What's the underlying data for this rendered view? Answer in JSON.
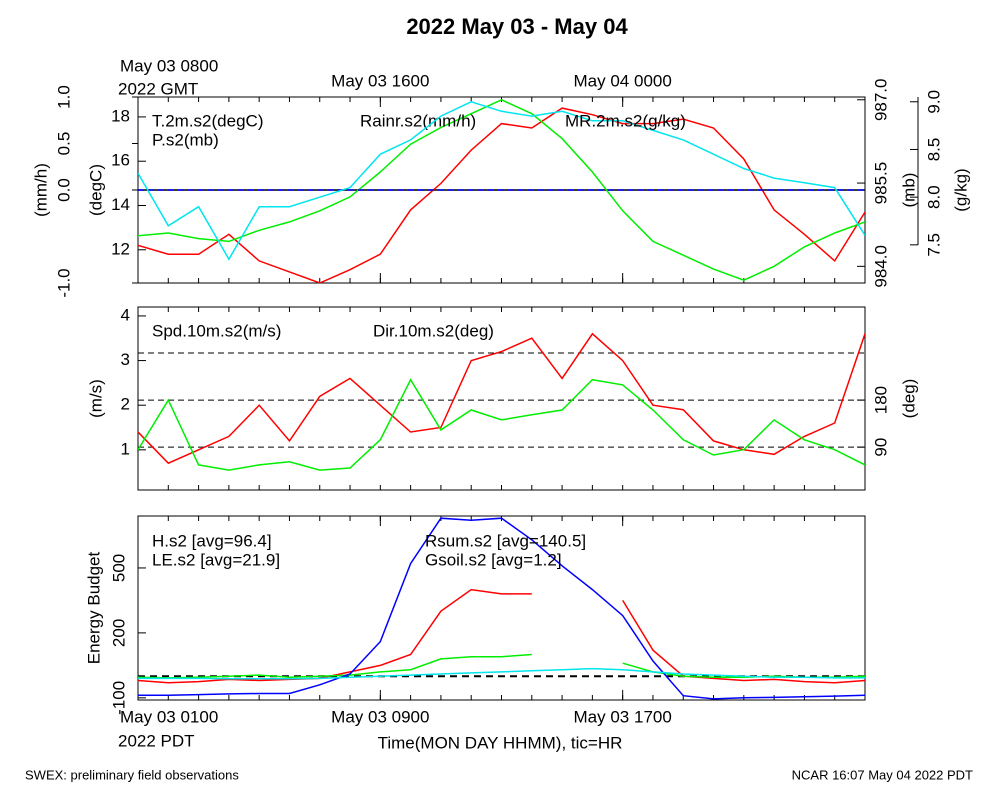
{
  "title": "2022 May 03 - May 04",
  "footer_left": "SWEX: preliminary field observations",
  "footer_right": "NCAR 16:07 May 04 2022 PDT",
  "chart_data": [
    {
      "type": "line",
      "x": [
        0,
        1,
        2,
        3,
        4,
        5,
        6,
        7,
        8,
        9,
        10,
        11,
        12,
        13,
        14,
        15,
        16,
        17,
        18,
        19,
        20,
        21,
        22,
        23,
        24
      ],
      "xlim": [
        0,
        24
      ],
      "xminor": 1,
      "xtick_side": "top",
      "xticks": [
        {
          "value": 0,
          "label": "May 03 0800"
        },
        {
          "value": 8,
          "label": "May 03 1600"
        },
        {
          "value": 16,
          "label": "May 04 0000"
        }
      ],
      "xtick_note": "2022 GMT",
      "axes": [
        {
          "label": "(mm/h)",
          "side": "left",
          "lim": [
            -1,
            1
          ],
          "ticks": [
            {
              "value": -1,
              "label": "-1.0"
            },
            {
              "value": 0,
              "label": "0.0"
            },
            0.5,
            {
              "value": 1,
              "label": "1.0"
            }
          ]
        },
        {
          "label": "(degC)",
          "side": "left",
          "lim": [
            10.5,
            18.9
          ],
          "ticks": [
            12,
            14,
            16,
            18
          ]
        },
        {
          "label": "(mb)",
          "side": "right",
          "lim": [
            983.7,
            987.05
          ],
          "ticks": [
            {
              "value": 984,
              "label": "984.0"
            },
            985.5,
            {
              "value": 987,
              "label": "987.0"
            }
          ]
        },
        {
          "label": "(g/kg)",
          "side": "right",
          "lim": [
            7.1,
            9.05
          ],
          "ticks": [
            7.5,
            {
              "value": 8,
              "label": "8.0"
            },
            8.5,
            {
              "value": 9,
              "label": "9.0"
            }
          ]
        }
      ],
      "reference_lines": [
        {
          "axis": 0,
          "value": 0,
          "style": "solid"
        }
      ],
      "series": [
        {
          "name": "T.2m.s2(degC)",
          "color": "#ff0000",
          "axis": 1,
          "values": [
            12.2,
            11.8,
            11.8,
            12.7,
            11.5,
            11.0,
            10.5,
            11.1,
            11.8,
            13.8,
            15.0,
            16.5,
            17.7,
            17.5,
            18.4,
            18.1,
            17.7,
            17.7,
            17.9,
            17.5,
            16.1,
            13.8,
            12.7,
            11.5,
            13.7
          ]
        },
        {
          "name": "P.s2(mb)",
          "color": "#00ee00",
          "axis": 2,
          "values": [
            984.55,
            984.6,
            984.5,
            984.45,
            984.65,
            984.8,
            985.0,
            985.25,
            985.7,
            986.2,
            986.5,
            986.75,
            987.0,
            986.75,
            986.3,
            985.7,
            985.0,
            984.45,
            984.2,
            983.95,
            983.75,
            984.0,
            984.35,
            984.6,
            984.8
          ]
        },
        {
          "name": "Rainr.s2(mm/h)",
          "color": "#0000ff",
          "axis": 0,
          "style": "dashed",
          "values": [
            0,
            0,
            0,
            0,
            0,
            0,
            0,
            0,
            0,
            0,
            0,
            0,
            0,
            0,
            0,
            0,
            0,
            0,
            0,
            0,
            0,
            0,
            0,
            0,
            0
          ]
        },
        {
          "name": "MR.2m.s2(g/kg)",
          "color": "#00e5ee",
          "axis": 3,
          "values": [
            8.25,
            7.7,
            7.9,
            7.35,
            7.9,
            7.9,
            8.0,
            8.1,
            8.45,
            8.6,
            8.85,
            9.0,
            8.9,
            8.85,
            8.9,
            8.8,
            8.8,
            8.7,
            8.6,
            8.45,
            8.3,
            8.2,
            8.15,
            8.1,
            7.6
          ]
        }
      ]
    },
    {
      "type": "line",
      "x": [
        0,
        1,
        2,
        3,
        4,
        5,
        6,
        7,
        8,
        9,
        10,
        11,
        12,
        13,
        14,
        15,
        16,
        17,
        18,
        19,
        20,
        21,
        22,
        23,
        24
      ],
      "xlim": [
        0,
        24
      ],
      "xminor": 1,
      "axes": [
        {
          "label": "(m/s)",
          "side": "left",
          "lim": [
            0.1,
            4.2
          ],
          "ticks": [
            1,
            2,
            3,
            4
          ]
        },
        {
          "label": "(deg)",
          "side": "right",
          "lim": [
            8,
            358
          ],
          "ticks": [
            90,
            180
          ]
        }
      ],
      "gridlines": {
        "axis": 1,
        "values": [
          90,
          180,
          270
        ],
        "style": "dashed"
      },
      "series": [
        {
          "name": "Spd.10m.s2(m/s)",
          "color": "#ff0000",
          "axis": 0,
          "values": [
            1.4,
            0.7,
            1.0,
            1.3,
            2.0,
            1.2,
            2.2,
            2.6,
            2.0,
            1.4,
            1.5,
            3.0,
            3.2,
            3.5,
            2.6,
            3.6,
            3.0,
            2.0,
            1.9,
            1.2,
            1.0,
            0.9,
            1.3,
            1.6,
            3.6
          ]
        },
        {
          "name": "Dir.10m.s2(deg)",
          "color": "#00ee00",
          "axis": 1,
          "values": [
            85,
            180,
            56,
            46,
            56,
            62,
            46,
            50,
            104,
            219,
            123,
            161,
            142,
            152,
            161,
            219,
            209,
            161,
            104,
            75,
            85,
            142,
            104,
            85,
            56
          ]
        }
      ]
    },
    {
      "type": "line",
      "x": [
        0,
        1,
        2,
        3,
        4,
        5,
        6,
        7,
        8,
        9,
        10,
        11,
        12,
        13,
        14,
        15,
        16,
        17,
        18,
        19,
        20,
        21,
        22,
        23,
        24
      ],
      "xlim": [
        0,
        24
      ],
      "xminor": 1,
      "xtick_side": "bottom",
      "xticks": [
        {
          "value": 0,
          "label": "May 03 0100"
        },
        {
          "value": 8,
          "label": "May 03 0900"
        },
        {
          "value": 16,
          "label": "May 03 1700"
        }
      ],
      "xtick_note": "2022 PDT",
      "xlabel": "Time(MON DAY HHMM), tic=HR",
      "axes": [
        {
          "label": "Energy Budget",
          "side": "left",
          "lim": [
            -110,
            740
          ],
          "ticks": [
            -100,
            200,
            500
          ]
        }
      ],
      "reference_lines": [
        {
          "axis": 0,
          "value": 0,
          "style": "dashed"
        }
      ],
      "series": [
        {
          "name": "H.s2 [avg=96.4]",
          "color": "#ff0000",
          "axis": 0,
          "values": [
            -20,
            -30,
            -25,
            -15,
            -20,
            -15,
            -10,
            20,
            50,
            100,
            300,
            400,
            380,
            380,
            null,
            null,
            350,
            120,
            0,
            -10,
            -20,
            -15,
            -25,
            -30,
            -20
          ]
        },
        {
          "name": "LE.s2 [avg=21.9]",
          "color": "#00ee00",
          "axis": 0,
          "values": [
            -5,
            -8,
            -5,
            0,
            5,
            -5,
            0,
            5,
            20,
            30,
            80,
            90,
            90,
            100,
            null,
            null,
            60,
            20,
            0,
            -5,
            -5,
            0,
            -5,
            -5,
            0
          ]
        },
        {
          "name": "Rsum.s2 [avg=140.5]",
          "color": "#0000ff",
          "axis": 0,
          "values": [
            -88,
            -88,
            -85,
            -82,
            -80,
            -80,
            -40,
            10,
            160,
            520,
            730,
            720,
            730,
            630,
            510,
            400,
            280,
            70,
            -90,
            -105,
            -100,
            -98,
            -95,
            -92,
            -88
          ]
        },
        {
          "name": "Gsoil.s2 [avg=1.2]",
          "color": "#00e5ee",
          "axis": 0,
          "values": [
            -10,
            -10,
            -10,
            -12,
            -12,
            -12,
            -10,
            -5,
            0,
            5,
            10,
            15,
            20,
            25,
            30,
            35,
            30,
            20,
            10,
            5,
            0,
            -5,
            -5,
            -8,
            -8
          ]
        }
      ]
    }
  ]
}
